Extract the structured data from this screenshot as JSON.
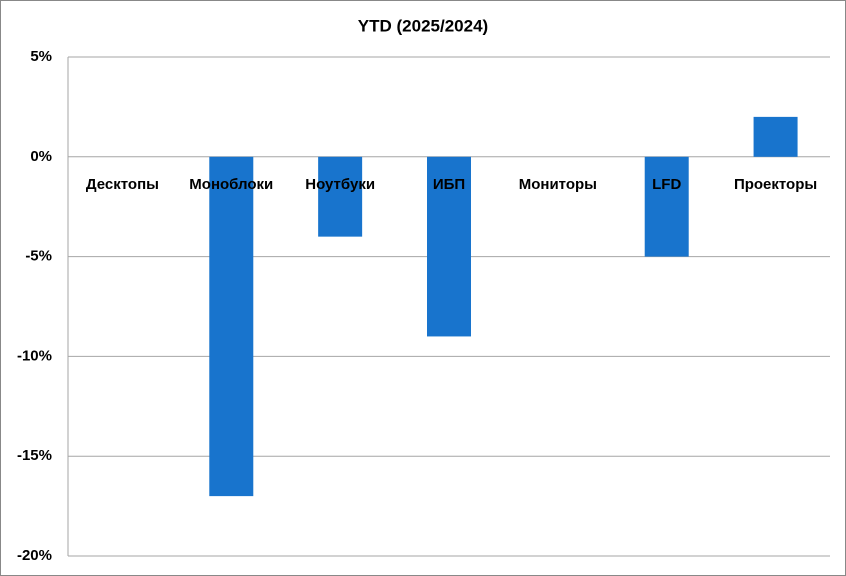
{
  "chart_data": {
    "type": "bar",
    "title": "YTD (2025/2024)",
    "categories": [
      "Десктопы",
      "Моноблоки",
      "Ноутбуки",
      "ИБП",
      "Мониторы",
      "LFD",
      "Проекторы"
    ],
    "values": [
      0,
      -17,
      -4,
      -9,
      0,
      -5,
      2
    ],
    "color": "#1874cd",
    "ylim": [
      -20,
      5
    ],
    "yticks": [
      {
        "value": 5,
        "label": "5%"
      },
      {
        "value": 0,
        "label": "0%"
      },
      {
        "value": -5,
        "label": "-5%"
      },
      {
        "value": -10,
        "label": "-10%"
      },
      {
        "value": -15,
        "label": "-15%"
      },
      {
        "value": -20,
        "label": "-20%"
      }
    ],
    "grid": true
  }
}
